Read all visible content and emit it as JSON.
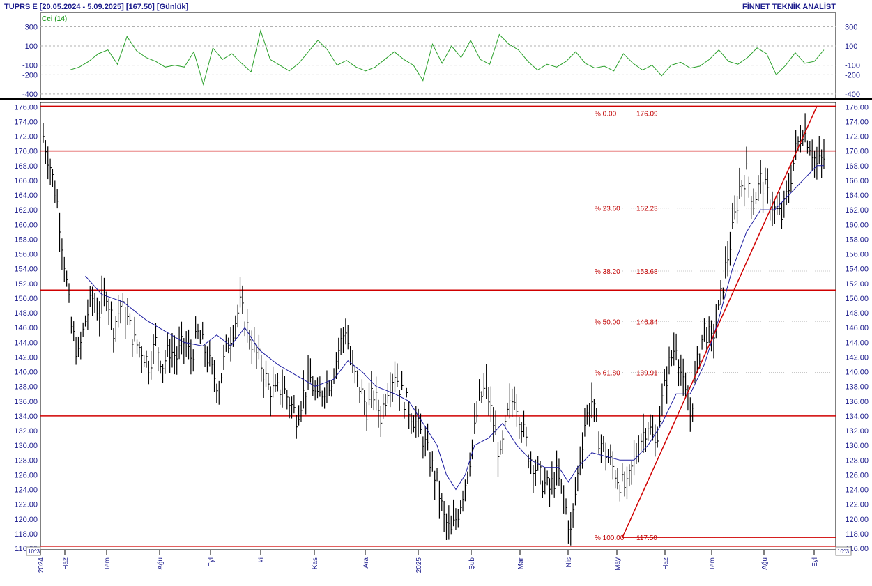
{
  "header": {
    "left": "TUPRS E  [20.05.2024 - 5.09.2025]  [167.50]  [Günlük]",
    "right": "FİNNET TEKNİK ANALİST"
  },
  "cci_panel": {
    "label": "Cci (14)",
    "color": "#2aa02a",
    "ticks": [
      "300",
      "100",
      "-100",
      "-200",
      "-400"
    ],
    "tick_values": [
      300,
      100,
      -100,
      -200,
      -400
    ],
    "ylim": [
      -430,
      420
    ],
    "x": [
      0,
      4,
      8,
      12,
      16,
      20,
      24,
      28,
      32,
      36,
      40,
      44,
      48,
      52,
      56,
      60,
      64,
      68,
      72,
      76,
      80,
      84,
      88,
      92,
      96,
      100,
      104,
      108,
      112,
      116,
      120,
      124,
      128,
      132,
      136,
      140,
      144,
      148,
      152,
      156,
      160,
      164,
      168,
      172,
      176,
      180,
      184,
      188,
      192,
      196,
      200,
      204,
      208,
      212,
      216,
      220,
      224,
      228,
      232,
      236,
      240,
      244,
      248,
      252,
      256,
      260,
      264,
      268,
      272,
      276,
      280,
      284,
      288,
      292,
      296,
      300,
      304,
      308,
      312,
      316
    ],
    "values": [
      -150,
      -120,
      -60,
      20,
      60,
      -90,
      200,
      50,
      -20,
      -60,
      -120,
      -100,
      -120,
      40,
      -300,
      80,
      -40,
      20,
      -80,
      -170,
      260,
      -40,
      -100,
      -160,
      -80,
      40,
      160,
      60,
      -100,
      -50,
      -120,
      -160,
      -120,
      -40,
      40,
      -40,
      -100,
      -260,
      120,
      -80,
      100,
      -20,
      160,
      -40,
      -90,
      220,
      120,
      60,
      -60,
      -150,
      -90,
      -120,
      -60,
      40,
      -80,
      -130,
      -110,
      -160,
      20,
      -80,
      -150,
      -100,
      -210,
      -100,
      -70,
      -130,
      -110,
      -40,
      60,
      -60,
      -90,
      -20,
      80,
      20,
      -200,
      -100,
      30,
      -80,
      -60,
      60
    ]
  },
  "price_panel": {
    "ticks": [
      "176.00",
      "174.00",
      "172.00",
      "170.00",
      "168.00",
      "166.00",
      "164.00",
      "162.00",
      "160.00",
      "158.00",
      "156.00",
      "154.00",
      "152.00",
      "150.00",
      "148.00",
      "146.00",
      "144.00",
      "142.00",
      "140.00",
      "138.00",
      "136.00",
      "134.00",
      "132.00",
      "130.00",
      "128.00",
      "126.00",
      "124.00",
      "122.00",
      "120.00",
      "118.00",
      "116.00"
    ],
    "scale_badge": "10^3",
    "ylim": [
      116,
      176.5
    ],
    "horizontal_lines": [
      176.09,
      170.0,
      151.1,
      134.0,
      116.3
    ],
    "fibonacci": [
      {
        "label": "% 0.00",
        "value": "176.09"
      },
      {
        "label": "% 23.60",
        "value": "162.23"
      },
      {
        "label": "% 38.20",
        "value": "153.68"
      },
      {
        "label": "% 50.00",
        "value": "146.84"
      },
      {
        "label": "% 61.80",
        "value": "139.91"
      },
      {
        "label": "% 100.00",
        "value": "117.50"
      }
    ],
    "fib_levels": [
      176.09,
      162.23,
      153.68,
      146.84,
      139.91,
      117.5
    ],
    "trendline": {
      "from": {
        "date": "2025-05-05",
        "price": 117.5
      },
      "to": {
        "date": "2025-09-01",
        "price": 176.09
      }
    },
    "support_line": {
      "from_date": "2025-05-05",
      "price": 117.5
    },
    "colors": {
      "price_bars": "#000000",
      "moving_average": "#1a1aa0",
      "lines": "#d00000",
      "fib_dots": "#c8c8c8"
    }
  },
  "chart_data": {
    "type": "bar",
    "title": "TUPRS E",
    "xlabel": "",
    "ylabel": "",
    "x_ticks": [
      "2024",
      "Haz",
      "Tem",
      "Ağu",
      "Eyl",
      "Eki",
      "Kas",
      "Ara",
      "2025",
      "Şub",
      "Mar",
      "Nis",
      "May",
      "Haz",
      "Tem",
      "Ağu",
      "Eyl"
    ],
    "close_points": [
      {
        "x": 0,
        "y": 172
      },
      {
        "x": 3,
        "y": 168
      },
      {
        "x": 6,
        "y": 163
      },
      {
        "x": 9,
        "y": 155
      },
      {
        "x": 12,
        "y": 146
      },
      {
        "x": 15,
        "y": 142
      },
      {
        "x": 18,
        "y": 147
      },
      {
        "x": 21,
        "y": 150
      },
      {
        "x": 24,
        "y": 148
      },
      {
        "x": 27,
        "y": 151
      },
      {
        "x": 30,
        "y": 146
      },
      {
        "x": 33,
        "y": 149
      },
      {
        "x": 36,
        "y": 147
      },
      {
        "x": 39,
        "y": 144
      },
      {
        "x": 42,
        "y": 143
      },
      {
        "x": 45,
        "y": 141
      },
      {
        "x": 48,
        "y": 144
      },
      {
        "x": 51,
        "y": 141
      },
      {
        "x": 54,
        "y": 143
      },
      {
        "x": 57,
        "y": 142
      },
      {
        "x": 60,
        "y": 144
      },
      {
        "x": 63,
        "y": 142
      },
      {
        "x": 66,
        "y": 145
      },
      {
        "x": 69,
        "y": 143
      },
      {
        "x": 72,
        "y": 140
      },
      {
        "x": 75,
        "y": 138
      },
      {
        "x": 78,
        "y": 143
      },
      {
        "x": 81,
        "y": 146
      },
      {
        "x": 84,
        "y": 149
      },
      {
        "x": 87,
        "y": 146
      },
      {
        "x": 90,
        "y": 143
      },
      {
        "x": 93,
        "y": 141
      },
      {
        "x": 96,
        "y": 138
      },
      {
        "x": 99,
        "y": 137
      },
      {
        "x": 102,
        "y": 138
      },
      {
        "x": 105,
        "y": 136
      },
      {
        "x": 108,
        "y": 134
      },
      {
        "x": 111,
        "y": 137
      },
      {
        "x": 114,
        "y": 139
      },
      {
        "x": 117,
        "y": 136
      },
      {
        "x": 120,
        "y": 138
      },
      {
        "x": 123,
        "y": 139
      },
      {
        "x": 126,
        "y": 143
      },
      {
        "x": 129,
        "y": 146
      },
      {
        "x": 132,
        "y": 140
      },
      {
        "x": 135,
        "y": 138
      },
      {
        "x": 138,
        "y": 135
      },
      {
        "x": 141,
        "y": 137
      },
      {
        "x": 144,
        "y": 134
      },
      {
        "x": 147,
        "y": 138
      },
      {
        "x": 150,
        "y": 140
      },
      {
        "x": 153,
        "y": 137
      },
      {
        "x": 156,
        "y": 135
      },
      {
        "x": 159,
        "y": 133
      },
      {
        "x": 162,
        "y": 131
      },
      {
        "x": 165,
        "y": 128
      },
      {
        "x": 168,
        "y": 125
      },
      {
        "x": 171,
        "y": 120
      },
      {
        "x": 174,
        "y": 118
      },
      {
        "x": 177,
        "y": 121
      },
      {
        "x": 180,
        "y": 125
      },
      {
        "x": 183,
        "y": 130
      },
      {
        "x": 186,
        "y": 136
      },
      {
        "x": 189,
        "y": 138
      },
      {
        "x": 192,
        "y": 133
      },
      {
        "x": 195,
        "y": 128
      },
      {
        "x": 198,
        "y": 134
      },
      {
        "x": 201,
        "y": 137
      },
      {
        "x": 204,
        "y": 133
      },
      {
        "x": 207,
        "y": 129
      },
      {
        "x": 210,
        "y": 127
      },
      {
        "x": 213,
        "y": 125
      },
      {
        "x": 216,
        "y": 124
      },
      {
        "x": 219,
        "y": 126
      },
      {
        "x": 222,
        "y": 123
      },
      {
        "x": 225,
        "y": 118
      },
      {
        "x": 228,
        "y": 126
      },
      {
        "x": 231,
        "y": 133
      },
      {
        "x": 234,
        "y": 136
      },
      {
        "x": 237,
        "y": 131
      },
      {
        "x": 240,
        "y": 129
      },
      {
        "x": 243,
        "y": 127
      },
      {
        "x": 246,
        "y": 125
      },
      {
        "x": 249,
        "y": 124
      },
      {
        "x": 252,
        "y": 128
      },
      {
        "x": 255,
        "y": 131
      },
      {
        "x": 258,
        "y": 133
      },
      {
        "x": 261,
        "y": 130
      },
      {
        "x": 264,
        "y": 136
      },
      {
        "x": 267,
        "y": 141
      },
      {
        "x": 270,
        "y": 144
      },
      {
        "x": 273,
        "y": 138
      },
      {
        "x": 276,
        "y": 134
      },
      {
        "x": 279,
        "y": 141
      },
      {
        "x": 282,
        "y": 146
      },
      {
        "x": 285,
        "y": 144
      },
      {
        "x": 288,
        "y": 148
      },
      {
        "x": 291,
        "y": 154
      },
      {
        "x": 294,
        "y": 159
      },
      {
        "x": 297,
        "y": 165
      },
      {
        "x": 300,
        "y": 167
      },
      {
        "x": 303,
        "y": 163
      },
      {
        "x": 306,
        "y": 166
      },
      {
        "x": 309,
        "y": 164
      },
      {
        "x": 312,
        "y": 162
      },
      {
        "x": 315,
        "y": 161
      },
      {
        "x": 318,
        "y": 165
      },
      {
        "x": 321,
        "y": 170
      },
      {
        "x": 324,
        "y": 173
      },
      {
        "x": 327,
        "y": 171
      },
      {
        "x": 330,
        "y": 168
      },
      {
        "x": 333,
        "y": 169
      }
    ],
    "moving_average": [
      {
        "x": 18,
        "y": 153
      },
      {
        "x": 25,
        "y": 150.5
      },
      {
        "x": 34,
        "y": 149.5
      },
      {
        "x": 44,
        "y": 147
      },
      {
        "x": 52,
        "y": 145.5
      },
      {
        "x": 60,
        "y": 144
      },
      {
        "x": 68,
        "y": 143.5
      },
      {
        "x": 74,
        "y": 145
      },
      {
        "x": 80,
        "y": 143.5
      },
      {
        "x": 86,
        "y": 146
      },
      {
        "x": 92,
        "y": 143
      },
      {
        "x": 100,
        "y": 141
      },
      {
        "x": 108,
        "y": 139.5
      },
      {
        "x": 116,
        "y": 138
      },
      {
        "x": 124,
        "y": 139
      },
      {
        "x": 130,
        "y": 141.5
      },
      {
        "x": 136,
        "y": 140
      },
      {
        "x": 142,
        "y": 138
      },
      {
        "x": 150,
        "y": 137
      },
      {
        "x": 156,
        "y": 136
      },
      {
        "x": 162,
        "y": 133
      },
      {
        "x": 168,
        "y": 130
      },
      {
        "x": 172,
        "y": 126
      },
      {
        "x": 176,
        "y": 124
      },
      {
        "x": 180,
        "y": 126
      },
      {
        "x": 184,
        "y": 130
      },
      {
        "x": 190,
        "y": 131
      },
      {
        "x": 196,
        "y": 133
      },
      {
        "x": 202,
        "y": 130
      },
      {
        "x": 208,
        "y": 128
      },
      {
        "x": 214,
        "y": 127
      },
      {
        "x": 220,
        "y": 127
      },
      {
        "x": 224,
        "y": 125
      },
      {
        "x": 228,
        "y": 127
      },
      {
        "x": 234,
        "y": 129
      },
      {
        "x": 240,
        "y": 128.5
      },
      {
        "x": 246,
        "y": 128
      },
      {
        "x": 252,
        "y": 128
      },
      {
        "x": 258,
        "y": 130
      },
      {
        "x": 264,
        "y": 133
      },
      {
        "x": 270,
        "y": 137
      },
      {
        "x": 276,
        "y": 137
      },
      {
        "x": 282,
        "y": 141
      },
      {
        "x": 288,
        "y": 147
      },
      {
        "x": 294,
        "y": 154
      },
      {
        "x": 300,
        "y": 159
      },
      {
        "x": 306,
        "y": 162
      },
      {
        "x": 312,
        "y": 162
      },
      {
        "x": 318,
        "y": 164
      },
      {
        "x": 324,
        "y": 166
      },
      {
        "x": 330,
        "y": 168
      },
      {
        "x": 333,
        "y": 168
      }
    ]
  }
}
